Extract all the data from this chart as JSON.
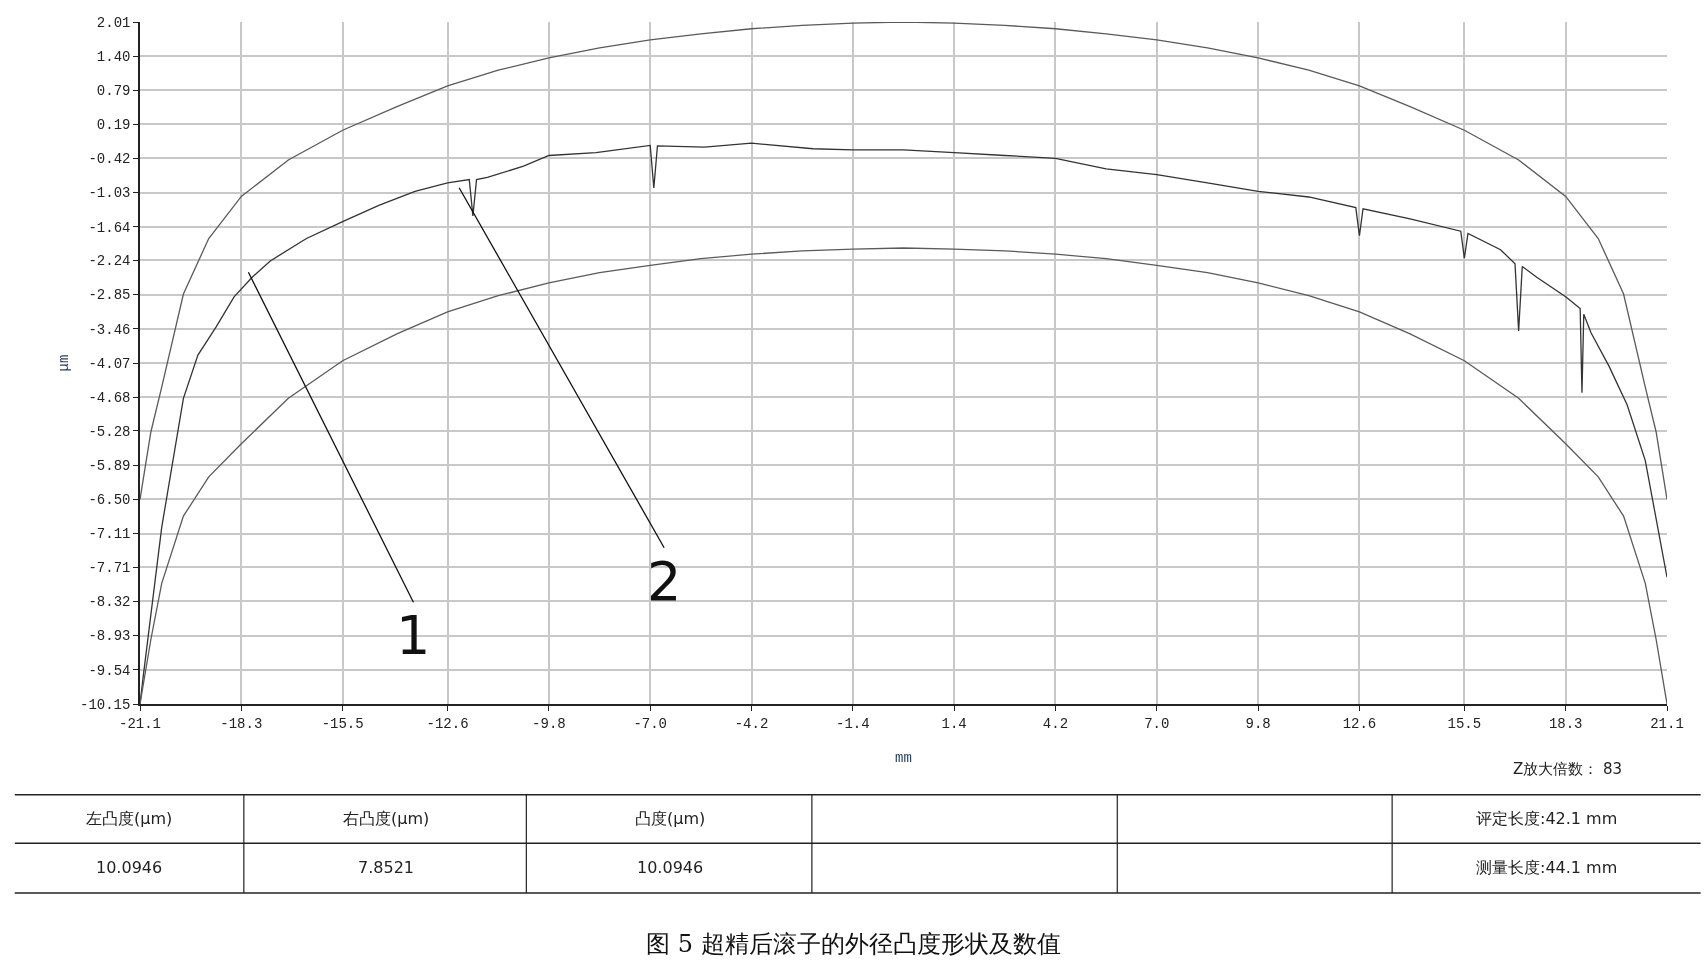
{
  "chart_data": {
    "type": "line",
    "title": "图 5 超精后滚子的外径凸度形状及数值",
    "xlabel": "mm",
    "ylabel": "μm",
    "xlim": [
      -21.1,
      21.1
    ],
    "ylim": [
      -10.15,
      2.01
    ],
    "xticks": [
      -21.1,
      -18.3,
      -15.5,
      -12.6,
      -9.8,
      {
        "value": -7.0,
        "label": "-7.0"
      },
      -4.2,
      -1.4,
      1.4,
      4.2,
      {
        "value": 7.0,
        "label": "7.0"
      },
      9.8,
      12.6,
      15.5,
      18.3,
      21.1
    ],
    "yticks": [
      2.01,
      {
        "value": 1.4,
        "label": "1.40"
      },
      0.79,
      0.19,
      -0.42,
      -1.03,
      -1.64,
      -2.24,
      -2.85,
      -3.46,
      -4.07,
      -4.68,
      -5.28,
      -5.89,
      {
        "value": -6.5,
        "label": "-6.50"
      },
      -7.11,
      -7.71,
      -8.32,
      -8.93,
      -9.54,
      -10.15
    ],
    "grid": true,
    "marker": "none",
    "line_style": "solid",
    "series": [
      {
        "color": "#5a5a5a",
        "x": [
          -21.1,
          -20.8,
          -20.5,
          -19.9,
          -19.2,
          -18.3,
          -17.0,
          -15.5,
          -14.0,
          -12.6,
          -11.2,
          -9.8,
          -8.4,
          -7.0,
          -5.6,
          -4.2,
          -2.8,
          -1.4,
          0.0,
          1.4,
          2.8,
          4.2,
          5.6,
          7.0,
          8.4,
          9.8,
          11.2,
          12.6,
          14.0,
          15.5,
          17.0,
          18.3,
          19.2,
          19.9,
          20.5,
          20.8,
          21.1
        ],
        "values": [
          -6.5,
          -5.3,
          -4.5,
          -2.84,
          -1.85,
          -1.1,
          -0.45,
          0.08,
          0.5,
          0.87,
          1.15,
          1.37,
          1.55,
          1.69,
          1.8,
          1.89,
          1.95,
          1.99,
          2.01,
          1.99,
          1.95,
          1.89,
          1.8,
          1.69,
          1.55,
          1.37,
          1.15,
          0.87,
          0.5,
          0.08,
          -0.45,
          -1.1,
          -1.85,
          -2.84,
          -4.5,
          -5.3,
          -6.5
        ]
      },
      {
        "color": "#333333",
        "x": [
          -21.1,
          -21.0,
          -20.5,
          -19.9,
          -19.5,
          -19.0,
          -18.5,
          -18.0,
          -17.5,
          -16.5,
          -15.5,
          -14.5,
          -13.5,
          -12.6,
          -12.0,
          -11.9,
          -11.8,
          -11.5,
          -10.5,
          -9.8,
          -8.5,
          -7.0,
          -6.9,
          -6.8,
          -5.5,
          -4.2,
          -2.5,
          -1.4,
          0.0,
          1.4,
          2.8,
          4.2,
          5.6,
          7.0,
          8.4,
          9.8,
          11.2,
          12.5,
          12.6,
          12.7,
          14.0,
          15.4,
          15.5,
          15.6,
          16.5,
          16.9,
          17.0,
          17.1,
          17.5,
          18.3,
          18.7,
          18.75,
          18.8,
          19.0,
          19.5,
          20.0,
          20.5,
          21.1
        ],
        "values": [
          -10.15,
          -9.6,
          -7.0,
          -4.7,
          -3.93,
          -3.43,
          -2.89,
          -2.54,
          -2.25,
          -1.85,
          -1.55,
          -1.26,
          -1.01,
          -0.86,
          -0.8,
          -1.45,
          -0.8,
          -0.76,
          -0.56,
          -0.37,
          -0.32,
          -0.19,
          -0.95,
          -0.2,
          -0.22,
          -0.15,
          -0.25,
          -0.27,
          -0.27,
          -0.32,
          -0.37,
          -0.42,
          -0.61,
          -0.71,
          -0.86,
          -1.01,
          -1.11,
          -1.3,
          -1.8,
          -1.32,
          -1.5,
          -1.72,
          -2.2,
          -1.76,
          -2.05,
          -2.3,
          -3.5,
          -2.35,
          -2.54,
          -2.89,
          -3.1,
          -4.6,
          -3.2,
          -3.53,
          -4.13,
          -4.82,
          -5.81,
          -7.89
        ]
      },
      {
        "color": "#5a5a5a",
        "x": [
          -21.1,
          -20.8,
          -20.5,
          -19.9,
          -19.2,
          -18.3,
          -17.0,
          -15.5,
          -14.0,
          -12.6,
          -11.2,
          -9.8,
          -8.4,
          -7.0,
          -5.6,
          -4.2,
          -2.8,
          -1.4,
          0.0,
          1.4,
          2.8,
          4.2,
          5.6,
          7.0,
          8.4,
          9.8,
          11.2,
          12.6,
          14.0,
          15.5,
          17.0,
          18.3,
          19.2,
          19.9,
          20.5,
          20.8,
          21.1
        ],
        "values": [
          -10.15,
          -9.0,
          -8.0,
          -6.8,
          -6.1,
          -5.51,
          -4.7,
          -4.03,
          -3.55,
          -3.16,
          -2.87,
          -2.64,
          -2.46,
          -2.33,
          -2.21,
          -2.13,
          -2.07,
          -2.04,
          -2.02,
          -2.04,
          -2.07,
          -2.13,
          -2.21,
          -2.33,
          -2.46,
          -2.64,
          -2.87,
          -3.16,
          -3.55,
          -4.03,
          -4.7,
          -5.51,
          -6.1,
          -6.8,
          -8.0,
          -9.0,
          -10.15
        ]
      }
    ],
    "annotations": [
      "1",
      "2",
      "Z放大倍数： 83",
      "左凸度(μm)",
      "右凸度(μm)",
      "凸度(μm)",
      "评定长度:42.1 mm",
      "10.0946",
      "7.8521",
      "10.0946",
      "测量长度:44.1 mm"
    ]
  }
}
